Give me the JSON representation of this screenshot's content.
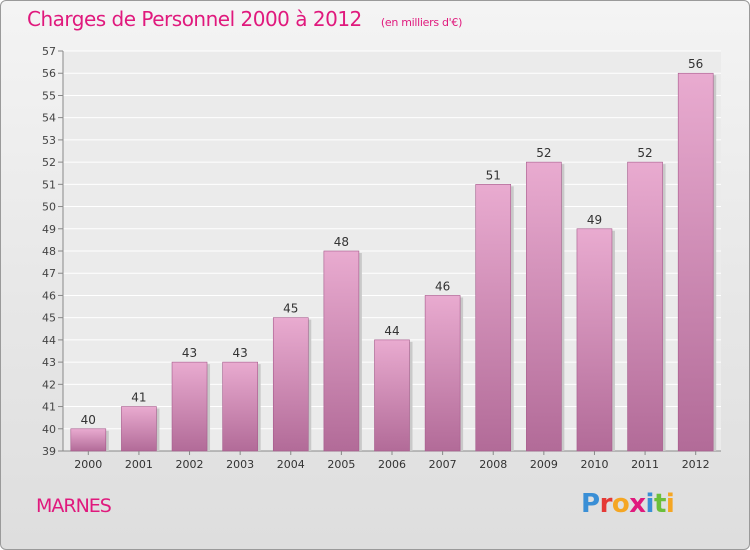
{
  "header": {
    "title": "Charges de Personnel 2000 à 2012",
    "subtitle": "(en milliers d'€)"
  },
  "footer": {
    "commune": "MARNES",
    "logo": "Proxiti"
  },
  "colors": {
    "title": "#e0197d",
    "bar_light": "#e8a9cf",
    "bar_dark": "#b06a97",
    "logo_letters": [
      "#3a8fd6",
      "#e53935",
      "#f5a623",
      "#e0197d",
      "#3a8fd6",
      "#6bbf3a",
      "#f5a623"
    ]
  },
  "chart_data": {
    "type": "bar",
    "categories": [
      "2000",
      "2001",
      "2002",
      "2003",
      "2004",
      "2005",
      "2006",
      "2007",
      "2008",
      "2009",
      "2010",
      "2011",
      "2012"
    ],
    "values": [
      40,
      41,
      43,
      43,
      45,
      48,
      44,
      46,
      51,
      52,
      49,
      52,
      56
    ],
    "ylim": [
      39,
      57
    ],
    "yticks": [
      39,
      40,
      41,
      42,
      43,
      44,
      45,
      46,
      47,
      48,
      49,
      50,
      51,
      52,
      53,
      54,
      55,
      56,
      57
    ],
    "grid": true,
    "data_labels": true
  }
}
